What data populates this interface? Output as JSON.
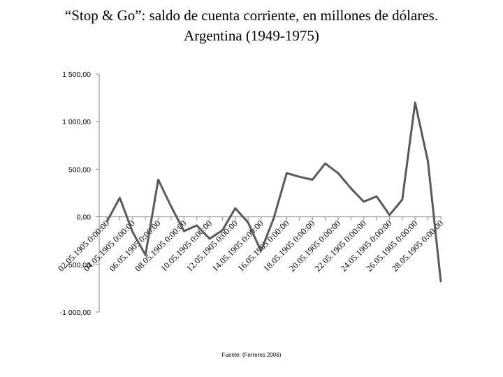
{
  "title_line1": "“Stop & Go”: saldo de cuenta corriente, en millones de dólares.",
  "title_line2": "Argentina (1949-1975)",
  "source": "Fuente: (Ferreres 2006)",
  "chart_data": {
    "type": "line",
    "title": "“Stop & Go”: saldo de cuenta corriente, en millones de dólares. Argentina (1949-1975)",
    "xlabel": "",
    "ylabel": "",
    "ylim": [
      -1000,
      1500
    ],
    "yticks": [
      1500,
      1000,
      500,
      0,
      -500,
      -1000
    ],
    "ytick_labels": [
      "1 500,00",
      "1 000,00",
      "500,00",
      "0,00",
      "-500,00",
      "-1 000,00"
    ],
    "xtick_labels": [
      "02.05.1905 0:00:00",
      "04.05.1905 0:00:00",
      "06.05.1905 0:00:00",
      "08.05.1905 0:00:00",
      "10.05.1905 0:00:00",
      "12.05.1905 0:00:00",
      "14.05.1905 0:00:00",
      "16.05.1905 0:00:00",
      "18.05.1905 0:00:00",
      "20.05.1905 0:00:00",
      "22.05.1905 0:00:00",
      "24.05.1905 0:00:00",
      "26.05.1905 0:00:00",
      "28.05.1905 0:00:00"
    ],
    "x": [
      1949,
      1950,
      1951,
      1952,
      1953,
      1954,
      1955,
      1956,
      1957,
      1958,
      1959,
      1960,
      1961,
      1962,
      1963,
      1964,
      1965,
      1966,
      1967,
      1968,
      1969,
      1970,
      1971,
      1972,
      1973,
      1974,
      1975
    ],
    "values": [
      -50,
      200,
      -160,
      -400,
      390,
      110,
      -150,
      -90,
      -230,
      -140,
      90,
      -60,
      -360,
      -10,
      460,
      420,
      390,
      560,
      460,
      300,
      160,
      215,
      20,
      180,
      1200,
      580,
      -680
    ],
    "line_color": "#595959",
    "grid": false
  }
}
